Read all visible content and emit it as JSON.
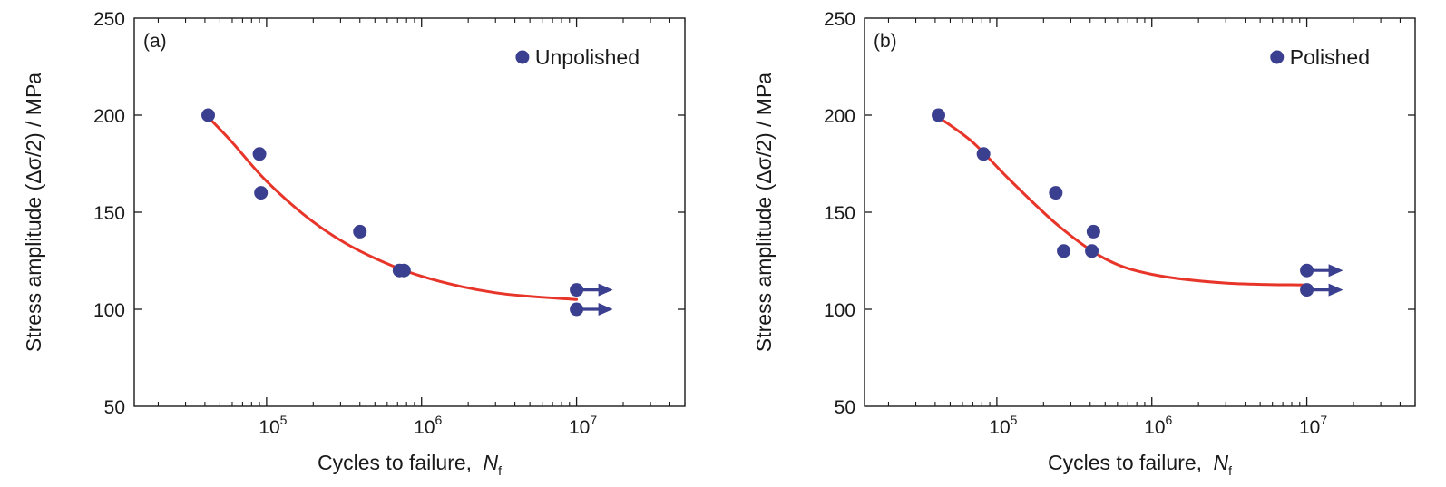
{
  "chart_data": [
    {
      "type": "scatter",
      "panel_label": "(a)",
      "legend": {
        "label": "Unpolished",
        "placement": "top-right"
      },
      "xlabel": "Cycles to failure,",
      "xlabel_symbol": "N",
      "xlabel_subscript": "f",
      "ylabel": "Stress amplitude (Δσ/2) / MPa",
      "x_scale": "log",
      "xlim": [
        14000,
        50000000
      ],
      "ylim": [
        50,
        250
      ],
      "yticks": [
        "50",
        "100",
        "150",
        "200",
        "250"
      ],
      "xticks": [
        {
          "value": 100000,
          "base": "10",
          "exp": "5"
        },
        {
          "value": 1000000,
          "base": "10",
          "exp": "6"
        },
        {
          "value": 10000000,
          "base": "10",
          "exp": "7"
        }
      ],
      "grid": false,
      "points": [
        {
          "x": 42000,
          "y": 200
        },
        {
          "x": 90000,
          "y": 180
        },
        {
          "x": 92000,
          "y": 160
        },
        {
          "x": 400000,
          "y": 140
        },
        {
          "x": 720000,
          "y": 120
        },
        {
          "x": 770000,
          "y": 120
        },
        {
          "x": 10000000,
          "y": 110,
          "runout": true
        },
        {
          "x": 10000000,
          "y": 100,
          "runout": true
        }
      ],
      "fit_curve": [
        {
          "x": 42000,
          "y": 199
        },
        {
          "x": 60000,
          "y": 186
        },
        {
          "x": 100000,
          "y": 166
        },
        {
          "x": 200000,
          "y": 145
        },
        {
          "x": 400000,
          "y": 130
        },
        {
          "x": 1000000,
          "y": 117
        },
        {
          "x": 3000000,
          "y": 108.5
        },
        {
          "x": 10000000,
          "y": 105
        }
      ],
      "colors": {
        "points": "#3b3f8f",
        "curve": "#e8352a",
        "runout_arrow": "#3b3f8f"
      }
    },
    {
      "type": "scatter",
      "panel_label": "(b)",
      "legend": {
        "label": "Polished",
        "placement": "top-right"
      },
      "xlabel": "Cycles to failure,",
      "xlabel_symbol": "N",
      "xlabel_subscript": "f",
      "ylabel": "Stress amplitude (Δσ/2) / MPa",
      "x_scale": "log",
      "xlim": [
        14000,
        50000000
      ],
      "ylim": [
        50,
        250
      ],
      "yticks": [
        "50",
        "100",
        "150",
        "200",
        "250"
      ],
      "xticks": [
        {
          "value": 100000,
          "base": "10",
          "exp": "5"
        },
        {
          "value": 1000000,
          "base": "10",
          "exp": "6"
        },
        {
          "value": 10000000,
          "base": "10",
          "exp": "7"
        }
      ],
      "grid": false,
      "points": [
        {
          "x": 42000,
          "y": 200
        },
        {
          "x": 82000,
          "y": 180
        },
        {
          "x": 240000,
          "y": 160
        },
        {
          "x": 270000,
          "y": 130
        },
        {
          "x": 410000,
          "y": 130
        },
        {
          "x": 420000,
          "y": 140
        },
        {
          "x": 10000000,
          "y": 120,
          "runout": true
        },
        {
          "x": 10000000,
          "y": 110,
          "runout": true
        }
      ],
      "fit_curve": [
        {
          "x": 42000,
          "y": 199
        },
        {
          "x": 70000,
          "y": 186
        },
        {
          "x": 120000,
          "y": 167
        },
        {
          "x": 250000,
          "y": 143
        },
        {
          "x": 500000,
          "y": 126
        },
        {
          "x": 1000000,
          "y": 118
        },
        {
          "x": 3000000,
          "y": 113.5
        },
        {
          "x": 10000000,
          "y": 112.5
        }
      ],
      "colors": {
        "points": "#3b3f8f",
        "curve": "#e8352a",
        "runout_arrow": "#3b3f8f"
      }
    }
  ]
}
